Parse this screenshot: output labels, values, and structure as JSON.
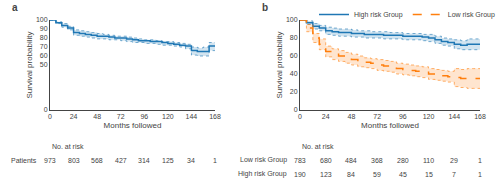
{
  "chart_data": [
    {
      "type": "line",
      "annotations": [
        "a"
      ],
      "xlabel": "Months followed",
      "ylabel": "Survival probability",
      "x": [
        0,
        6,
        12,
        18,
        24,
        30,
        36,
        42,
        48,
        54,
        60,
        66,
        72,
        78,
        84,
        90,
        96,
        102,
        108,
        114,
        120,
        126,
        132,
        138,
        144,
        150,
        156,
        162,
        168
      ],
      "series": [
        {
          "line_style": "solid",
          "values": [
            100,
            97,
            94,
            91,
            86,
            85,
            84,
            83,
            82,
            82,
            81,
            80,
            80,
            79,
            78,
            77,
            77,
            76,
            76,
            75,
            74,
            73,
            72,
            71,
            66,
            65,
            65,
            71,
            71
          ],
          "ci_upper": [
            100,
            98,
            96,
            93,
            89,
            88,
            87,
            86,
            85,
            84,
            83,
            82,
            82,
            81,
            80,
            79,
            78,
            78,
            77,
            76,
            76,
            75,
            74,
            73,
            70,
            69,
            70,
            75,
            75
          ],
          "ci_lower": [
            100,
            96,
            92,
            89,
            83,
            82,
            81,
            80,
            79,
            79,
            78,
            78,
            77,
            76,
            75,
            75,
            74,
            74,
            73,
            72,
            72,
            71,
            70,
            68,
            61,
            60,
            60,
            66,
            66
          ]
        }
      ],
      "xlim": [
        0,
        168
      ],
      "ylim": [
        0,
        100
      ],
      "xticks": [
        0,
        24,
        48,
        72,
        96,
        120,
        144,
        168
      ],
      "yticks": [
        0,
        50,
        60,
        70,
        80,
        90,
        100
      ],
      "grid": false,
      "at_risk": {
        "label": "No. at risk",
        "times": [
          0,
          24,
          48,
          72,
          96,
          120,
          144,
          168
        ],
        "rows": [
          {
            "name": "Patients",
            "values": [
              973,
              803,
              568,
              427,
              314,
              125,
              34,
              1
            ]
          }
        ]
      }
    },
    {
      "type": "line",
      "annotations": [
        "b"
      ],
      "xlabel": "Months followed",
      "ylabel": "Survival probability",
      "x": [
        0,
        6,
        12,
        18,
        24,
        30,
        36,
        42,
        48,
        54,
        60,
        66,
        72,
        78,
        84,
        90,
        96,
        102,
        108,
        114,
        120,
        126,
        132,
        138,
        144,
        150,
        156,
        162,
        168
      ],
      "series": [
        {
          "name": "High risk Group",
          "line_style": "solid",
          "values": [
            100,
            97,
            93,
            91,
            88,
            87,
            86,
            86,
            85,
            85,
            84,
            84,
            84,
            83,
            83,
            83,
            82,
            82,
            82,
            81,
            80,
            78,
            76,
            75,
            73,
            72,
            73,
            73,
            73
          ],
          "ci_upper": [
            100,
            99,
            96,
            94,
            92,
            91,
            90,
            90,
            89,
            88,
            88,
            87,
            87,
            87,
            86,
            86,
            85,
            85,
            85,
            84,
            84,
            82,
            80,
            79,
            78,
            77,
            79,
            79,
            79
          ],
          "ci_lower": [
            100,
            95,
            90,
            88,
            84,
            83,
            82,
            82,
            81,
            81,
            80,
            80,
            80,
            79,
            79,
            79,
            78,
            78,
            78,
            77,
            76,
            74,
            72,
            71,
            68,
            67,
            67,
            67,
            67
          ]
        },
        {
          "name": "Low risk Group",
          "line_style": "dashed",
          "values": [
            100,
            91,
            80,
            73,
            65,
            62,
            60,
            58,
            56,
            54,
            53,
            52,
            50,
            49,
            48,
            46,
            45,
            44,
            43,
            42,
            40,
            39,
            38,
            37,
            36,
            35,
            35,
            35,
            35
          ],
          "ci_upper": [
            100,
            95,
            85,
            79,
            71,
            68,
            66,
            64,
            62,
            60,
            58,
            57,
            56,
            55,
            54,
            52,
            51,
            50,
            49,
            48,
            46,
            45,
            44,
            43,
            46,
            45,
            46,
            46,
            46
          ],
          "ci_lower": [
            100,
            87,
            75,
            67,
            59,
            56,
            54,
            52,
            50,
            48,
            47,
            46,
            44,
            43,
            42,
            40,
            39,
            38,
            37,
            36,
            34,
            33,
            32,
            31,
            26,
            25,
            24,
            24,
            24
          ]
        }
      ],
      "xlim": [
        0,
        168
      ],
      "ylim": [
        0,
        100
      ],
      "xticks": [
        0,
        24,
        48,
        72,
        96,
        120,
        144,
        168
      ],
      "yticks": [
        0,
        20,
        40,
        60,
        80,
        100
      ],
      "grid": false,
      "legend": "upper right",
      "at_risk": {
        "label": "No. at risk",
        "times": [
          0,
          24,
          48,
          72,
          96,
          120,
          144,
          168
        ],
        "rows": [
          {
            "name": "Low risk Group",
            "values": [
              783,
              680,
              484,
              368,
              280,
              110,
              29,
              1
            ]
          },
          {
            "name": "High risk Group",
            "values": [
              190,
              123,
              84,
              59,
              45,
              15,
              7,
              1
            ]
          }
        ]
      }
    }
  ]
}
